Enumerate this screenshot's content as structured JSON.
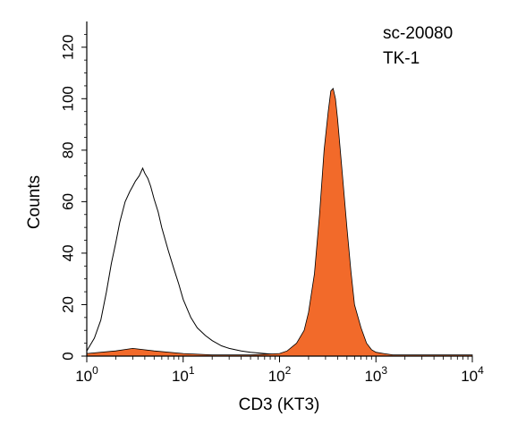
{
  "chart_data": {
    "type": "area",
    "title": "",
    "annotations": [
      "sc-20080",
      "TK-1"
    ],
    "xlabel": "CD3 (KT3)",
    "ylabel": "Counts",
    "xscale": "log",
    "xlim": [
      1,
      10000
    ],
    "ylim": [
      0,
      130
    ],
    "x_ticks": [
      {
        "value": 1,
        "base": "10",
        "exp": "0"
      },
      {
        "value": 10,
        "base": "10",
        "exp": "1"
      },
      {
        "value": 100,
        "base": "10",
        "exp": "2"
      },
      {
        "value": 1000,
        "base": "10",
        "exp": "3"
      },
      {
        "value": 10000,
        "base": "10",
        "exp": "4"
      }
    ],
    "y_ticks": [
      0,
      20,
      40,
      60,
      80,
      100,
      120
    ],
    "grid": false,
    "legend": "none",
    "series": [
      {
        "style": "outline",
        "color": "#000000",
        "x": [
          1.0,
          1.2,
          1.4,
          1.6,
          1.8,
          2.0,
          2.2,
          2.5,
          2.8,
          3.0,
          3.2,
          3.5,
          3.8,
          4.0,
          4.3,
          4.6,
          5.0,
          5.5,
          6.0,
          7.0,
          8.0,
          9.0,
          10,
          12,
          14,
          17,
          20,
          25,
          30,
          40,
          50,
          70,
          100,
          150,
          200
        ],
        "values": [
          2,
          7,
          14,
          25,
          36,
          44,
          52,
          60,
          64,
          66,
          68,
          70,
          73,
          71,
          69,
          66,
          61,
          56,
          50,
          41,
          34,
          28,
          22,
          15,
          11,
          8,
          6,
          4,
          3,
          2,
          1.5,
          1,
          0.5,
          0.5,
          0
        ]
      },
      {
        "style": "filled",
        "color": "#f26a2a",
        "x": [
          1.0,
          2.0,
          3.0,
          5.0,
          10,
          20,
          50,
          100,
          120,
          150,
          180,
          200,
          230,
          260,
          290,
          320,
          340,
          360,
          380,
          400,
          450,
          500,
          550,
          600,
          700,
          800,
          900,
          1000,
          1200,
          1500,
          2000,
          5000,
          10000
        ],
        "values": [
          1,
          2,
          3,
          2,
          1,
          0.5,
          0.5,
          1,
          2,
          5,
          10,
          17,
          32,
          55,
          80,
          95,
          103,
          104,
          100,
          92,
          70,
          50,
          33,
          20,
          11,
          5,
          2.5,
          1.5,
          1,
          0.5,
          0.5,
          0.5,
          0.5
        ]
      }
    ]
  }
}
